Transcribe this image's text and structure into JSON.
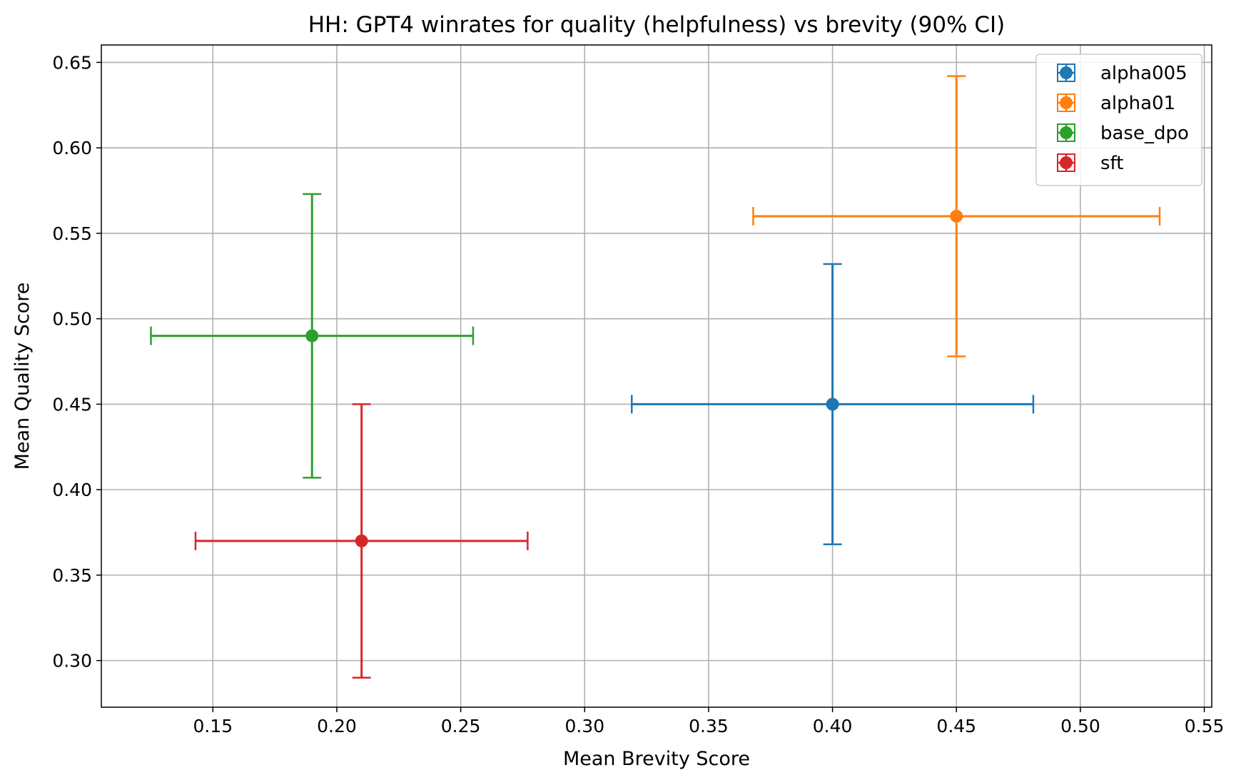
{
  "chart_data": {
    "type": "scatter",
    "title": "HH: GPT4 winrates for quality (helpfulness) vs brevity (90% CI)",
    "xlabel": "Mean Brevity Score",
    "ylabel": "Mean Quality Score",
    "xlim": [
      0.105,
      0.553
    ],
    "ylim": [
      0.2727,
      0.6602
    ],
    "x_ticks": [
      0.15,
      0.2,
      0.25,
      0.3,
      0.35,
      0.4,
      0.45,
      0.5,
      0.55
    ],
    "x_tick_labels": [
      "0.15",
      "0.20",
      "0.25",
      "0.30",
      "0.35",
      "0.40",
      "0.45",
      "0.50",
      "0.55"
    ],
    "y_ticks": [
      0.3,
      0.35,
      0.4,
      0.45,
      0.5,
      0.55,
      0.6,
      0.65
    ],
    "y_tick_labels": [
      "0.30",
      "0.35",
      "0.40",
      "0.45",
      "0.50",
      "0.55",
      "0.60",
      "0.65"
    ],
    "grid": true,
    "legend_position": "top-right",
    "series": [
      {
        "name": "alpha005",
        "color": "#1f77b4",
        "x": 0.4,
        "y": 0.45,
        "x_err": [
          0.319,
          0.481
        ],
        "y_err": [
          0.368,
          0.532
        ]
      },
      {
        "name": "alpha01",
        "color": "#ff7f0e",
        "x": 0.45,
        "y": 0.56,
        "x_err": [
          0.368,
          0.532
        ],
        "y_err": [
          0.478,
          0.642
        ]
      },
      {
        "name": "base_dpo",
        "color": "#2ca02c",
        "x": 0.19,
        "y": 0.49,
        "x_err": [
          0.125,
          0.255
        ],
        "y_err": [
          0.407,
          0.573
        ]
      },
      {
        "name": "sft",
        "color": "#d62728",
        "x": 0.21,
        "y": 0.37,
        "x_err": [
          0.143,
          0.277
        ],
        "y_err": [
          0.29,
          0.45
        ]
      }
    ]
  }
}
